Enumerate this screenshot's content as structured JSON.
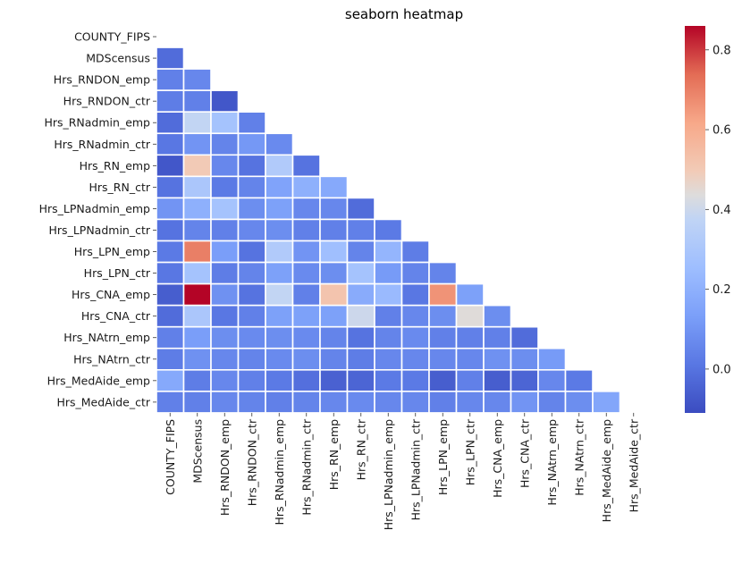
{
  "chart_data": {
    "type": "heatmap",
    "title": "seaborn heatmap",
    "colormap": "coolwarm",
    "mask": "upper-triangle-and-diagonal",
    "grid_line_color": "#ffffff",
    "vmin": -0.11,
    "vmax": 0.86,
    "colorbar_ticks": [
      "0.0",
      "0.2",
      "0.4",
      "0.6",
      "0.8"
    ],
    "colorbar_tick_values": [
      0.0,
      0.2,
      0.4,
      0.6,
      0.8
    ],
    "labels": [
      "COUNTY_FIPS",
      "MDScensus",
      "Hrs_RNDON_emp",
      "Hrs_RNDON_ctr",
      "Hrs_RNadmin_emp",
      "Hrs_RNadmin_ctr",
      "Hrs_RN_emp",
      "Hrs_RN_ctr",
      "Hrs_LPNadmin_emp",
      "Hrs_LPNadmin_ctr",
      "Hrs_LPN_emp",
      "Hrs_LPN_ctr",
      "Hrs_CNA_emp",
      "Hrs_CNA_ctr",
      "Hrs_NAtrn_emp",
      "Hrs_NAtrn_ctr",
      "Hrs_MedAide_emp",
      "Hrs_MedAide_ctr"
    ],
    "values": [
      [],
      [
        -0.02
      ],
      [
        0.04,
        0.06
      ],
      [
        0.03,
        0.04,
        -0.08
      ],
      [
        -0.02,
        0.38,
        0.28,
        0.04
      ],
      [
        0.01,
        0.1,
        0.05,
        0.11,
        0.07
      ],
      [
        -0.08,
        0.5,
        0.06,
        0.0,
        0.32,
        0.0
      ],
      [
        0.0,
        0.3,
        0.02,
        0.05,
        0.15,
        0.2,
        0.17
      ],
      [
        0.1,
        0.2,
        0.28,
        0.08,
        0.14,
        0.06,
        0.06,
        -0.02
      ],
      [
        0.0,
        0.05,
        0.04,
        0.06,
        0.08,
        0.04,
        0.04,
        0.04,
        0.02
      ],
      [
        0.02,
        0.7,
        0.13,
        0.0,
        0.32,
        0.1,
        0.26,
        0.05,
        0.22,
        0.03
      ],
      [
        0.01,
        0.28,
        0.03,
        0.05,
        0.14,
        0.07,
        0.08,
        0.28,
        0.12,
        0.05,
        0.05
      ],
      [
        -0.06,
        0.86,
        0.09,
        0.0,
        0.38,
        0.04,
        0.52,
        0.18,
        0.24,
        0.01,
        0.66,
        0.14
      ],
      [
        -0.02,
        0.3,
        0.01,
        0.04,
        0.14,
        0.14,
        0.14,
        0.4,
        0.04,
        0.06,
        0.08,
        0.44,
        0.08
      ],
      [
        0.04,
        0.13,
        0.08,
        0.07,
        0.08,
        0.07,
        0.05,
        0.0,
        0.05,
        0.07,
        0.04,
        0.04,
        0.04,
        -0.02
      ],
      [
        0.03,
        0.09,
        0.06,
        0.05,
        0.07,
        0.08,
        0.05,
        0.03,
        0.06,
        0.06,
        0.06,
        0.06,
        0.09,
        0.08,
        0.12
      ],
      [
        0.17,
        0.03,
        0.06,
        0.04,
        0.02,
        -0.01,
        -0.05,
        -0.04,
        0.02,
        0.02,
        -0.06,
        0.04,
        -0.06,
        -0.04,
        0.06,
        0.02
      ],
      [
        0.04,
        0.04,
        0.06,
        0.05,
        0.04,
        0.05,
        0.06,
        0.07,
        0.06,
        0.06,
        0.04,
        0.06,
        0.06,
        0.1,
        0.05,
        0.08,
        0.16
      ]
    ]
  }
}
